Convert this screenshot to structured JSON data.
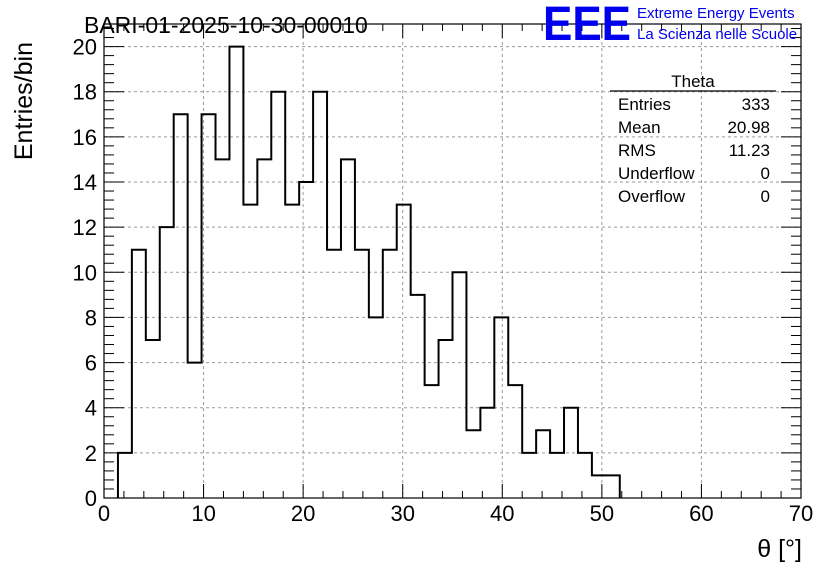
{
  "colors": {
    "hist": "#000000",
    "grid": "#9a9a9a",
    "brand": "#0000ee"
  },
  "brand": {
    "logo": "EEE",
    "line1": "Extreme Energy Events",
    "line2": "La Scienza nelle Scuole"
  },
  "stats": {
    "title": "Theta",
    "rows": [
      {
        "label": "Entries",
        "value": "333"
      },
      {
        "label": "Mean",
        "value": "20.98"
      },
      {
        "label": "RMS",
        "value": "11.23"
      },
      {
        "label": "Underflow",
        "value": "0"
      },
      {
        "label": "Overflow",
        "value": "0"
      }
    ]
  },
  "chart_data": {
    "type": "histogram",
    "title": "BARI-01-2025-10-30-00010",
    "xlabel": "θ [°]",
    "ylabel": "Entries/bin",
    "xlim": [
      0,
      70
    ],
    "ylim": [
      0,
      21
    ],
    "grid": true,
    "legend_placement": "top-right",
    "bin_width": 1.4,
    "bin_start": 1.4,
    "values": [
      2,
      11,
      7,
      12,
      17,
      6,
      17,
      15,
      20,
      13,
      15,
      18,
      13,
      14,
      18,
      11,
      15,
      11,
      8,
      11,
      13,
      9,
      5,
      7,
      10,
      3,
      4,
      8,
      5,
      2,
      3,
      2,
      4,
      2,
      1,
      1
    ],
    "xticks": [
      "0",
      "10",
      "20",
      "30",
      "40",
      "50",
      "60",
      "70"
    ],
    "yticks": [
      "0",
      "2",
      "4",
      "6",
      "8",
      "10",
      "12",
      "14",
      "16",
      "18",
      "20"
    ]
  }
}
